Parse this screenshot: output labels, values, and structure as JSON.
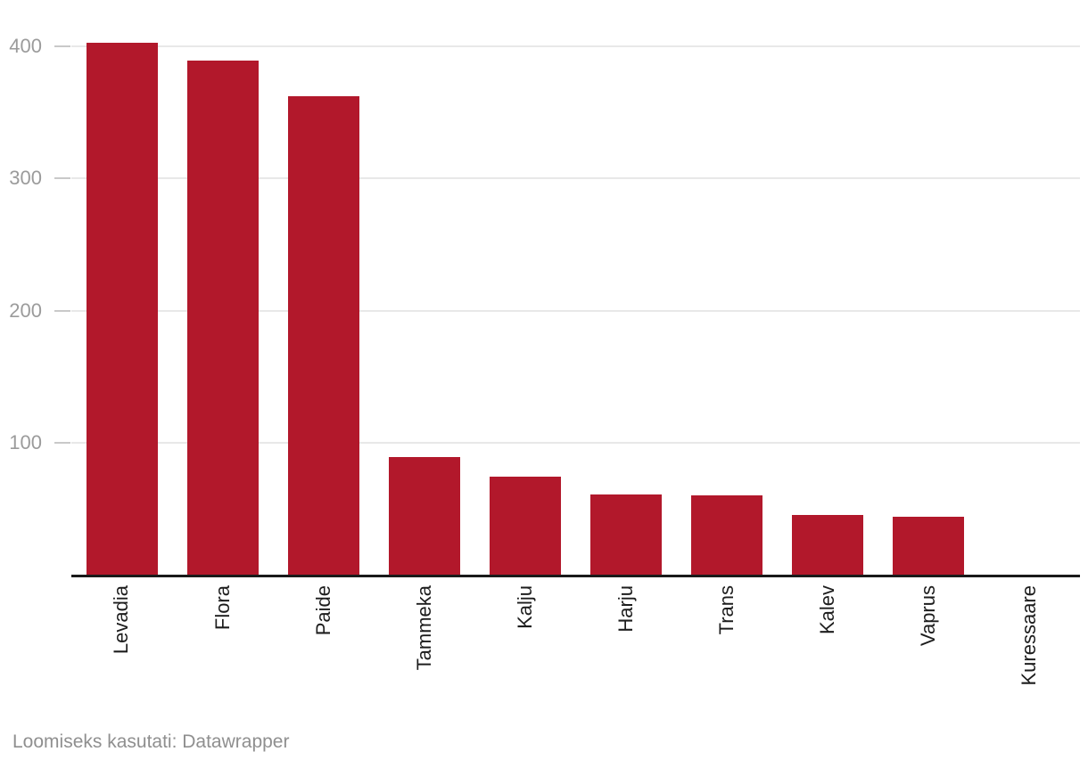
{
  "chart_data": {
    "type": "bar",
    "categories": [
      "Levadia",
      "Flora",
      "Paide",
      "Tammeka",
      "Kalju",
      "Harju",
      "Trans",
      "Kalev",
      "Vaprus",
      "Kuressaare"
    ],
    "values": [
      403,
      389,
      362,
      89,
      74,
      61,
      60,
      45,
      44,
      0
    ],
    "title": "",
    "xlabel": "",
    "ylabel": "",
    "ylim": [
      0,
      400
    ],
    "yticks": [
      100,
      200,
      300,
      400
    ],
    "grid": true,
    "legend": false,
    "bar_color": "#b2182b",
    "axis_line_color": "#1a1a1a",
    "gridline_color": "#e8e8e8",
    "tick_dash_color": "#c9c9c9",
    "tick_label_color": "#9b9b9b",
    "category_label_color": "#1d1d1d"
  },
  "footer": {
    "text": "Loomiseks kasutati: Datawrapper",
    "color": "#8f8f8f"
  }
}
